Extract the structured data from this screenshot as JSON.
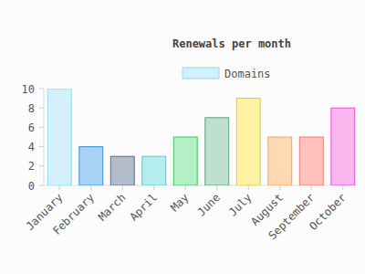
{
  "chart_data": {
    "type": "bar",
    "title": "Renewals per month",
    "categories": [
      "January",
      "February",
      "March",
      "April",
      "May",
      "June",
      "July",
      "August",
      "September",
      "October"
    ],
    "series": [
      {
        "name": "Domains",
        "values": [
          10,
          4,
          3,
          3,
          5,
          7,
          9,
          5,
          5,
          8
        ]
      }
    ],
    "colors": [
      "#d2f1fb",
      "#a8d3f5",
      "#b2bccb",
      "#b4edf0",
      "#b5efc5",
      "#bfdfd1",
      "#fdf3a2",
      "#fed9b2",
      "#ffc2be",
      "#f9b5ee"
    ],
    "ylim": [
      0,
      10
    ],
    "yticks": [
      0,
      2,
      4,
      6,
      8,
      10
    ],
    "grid": false,
    "legend": "top"
  }
}
